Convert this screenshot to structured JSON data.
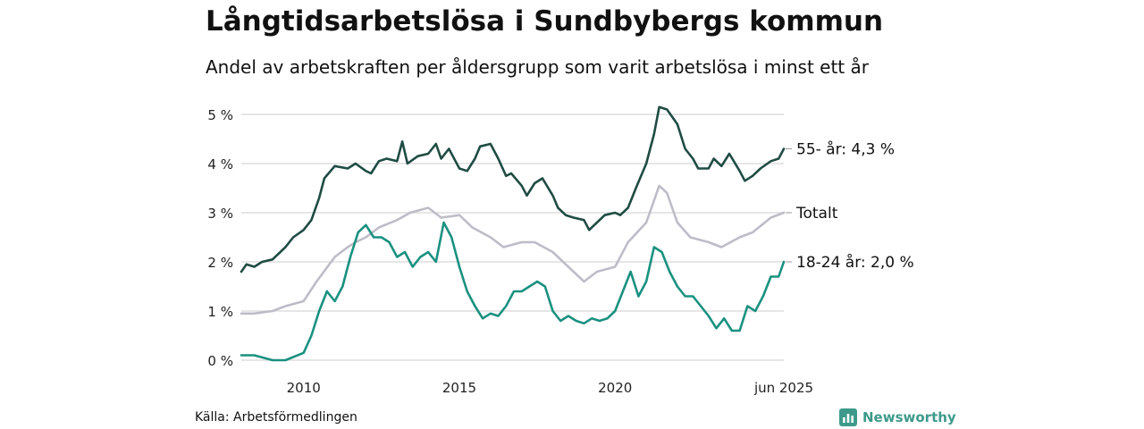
{
  "header": {
    "title": "Långtidsarbetslösa i Sundbybergs kommun",
    "subtitle": "Andel av arbetskraften per åldersgrupp som varit arbetslösa i minst ett år"
  },
  "footer": {
    "source": "Källa: Arbetsförmedlingen",
    "brand": "Newsworthy"
  },
  "colors": {
    "series_55": "#1f4c43",
    "series_total": "#bfbcc8",
    "series_18_24": "#1a9180",
    "grid": "#dddddd",
    "brand": "#3d9a8b"
  },
  "chart_data": {
    "type": "line",
    "title": "Långtidsarbetslösa i Sundbybergs kommun",
    "subtitle": "Andel av arbetskraften per åldersgrupp som varit arbetslösa i minst ett år",
    "xlabel": "",
    "ylabel": "",
    "ylim": [
      0,
      5
    ],
    "y_unit": "%",
    "y_ticks": [
      {
        "value": 0,
        "label": "0 %"
      },
      {
        "value": 1,
        "label": "1 %"
      },
      {
        "value": 2,
        "label": "2 %"
      },
      {
        "value": 3,
        "label": "3 %"
      },
      {
        "value": 4,
        "label": "4 %"
      },
      {
        "value": 5,
        "label": "5 %"
      }
    ],
    "xlim": [
      "2008-01",
      "2025-06"
    ],
    "x_ticks": [
      {
        "value": "2010-01",
        "label": "2010"
      },
      {
        "value": "2015-01",
        "label": "2015"
      },
      {
        "value": "2020-01",
        "label": "2020"
      },
      {
        "value": "2025-06",
        "label": "jun 2025"
      }
    ],
    "grid": true,
    "legend": "end-of-line labels, right",
    "series": [
      {
        "name": "55- år",
        "end_label": "55- år: 4,3 %",
        "color": "#1f4c43",
        "points": [
          [
            "2008-01",
            1.8
          ],
          [
            "2008-03",
            1.95
          ],
          [
            "2008-06",
            1.9
          ],
          [
            "2008-09",
            2.0
          ],
          [
            "2009-01",
            2.05
          ],
          [
            "2009-06",
            2.3
          ],
          [
            "2009-09",
            2.5
          ],
          [
            "2010-01",
            2.65
          ],
          [
            "2010-04",
            2.85
          ],
          [
            "2010-07",
            3.3
          ],
          [
            "2010-09",
            3.7
          ],
          [
            "2011-01",
            3.95
          ],
          [
            "2011-06",
            3.9
          ],
          [
            "2011-09",
            4.0
          ],
          [
            "2012-01",
            3.85
          ],
          [
            "2012-03",
            3.8
          ],
          [
            "2012-06",
            4.05
          ],
          [
            "2012-09",
            4.1
          ],
          [
            "2013-01",
            4.05
          ],
          [
            "2013-03",
            4.45
          ],
          [
            "2013-05",
            4.0
          ],
          [
            "2013-09",
            4.15
          ],
          [
            "2014-01",
            4.2
          ],
          [
            "2014-04",
            4.4
          ],
          [
            "2014-06",
            4.1
          ],
          [
            "2014-09",
            4.3
          ],
          [
            "2015-01",
            3.9
          ],
          [
            "2015-04",
            3.85
          ],
          [
            "2015-07",
            4.1
          ],
          [
            "2015-09",
            4.35
          ],
          [
            "2016-01",
            4.4
          ],
          [
            "2016-04",
            4.1
          ],
          [
            "2016-07",
            3.75
          ],
          [
            "2016-09",
            3.8
          ],
          [
            "2017-01",
            3.55
          ],
          [
            "2017-03",
            3.35
          ],
          [
            "2017-06",
            3.6
          ],
          [
            "2017-09",
            3.7
          ],
          [
            "2018-01",
            3.35
          ],
          [
            "2018-03",
            3.1
          ],
          [
            "2018-06",
            2.95
          ],
          [
            "2018-09",
            2.9
          ],
          [
            "2019-01",
            2.85
          ],
          [
            "2019-03",
            2.65
          ],
          [
            "2019-06",
            2.8
          ],
          [
            "2019-09",
            2.95
          ],
          [
            "2020-01",
            3.0
          ],
          [
            "2020-03",
            2.95
          ],
          [
            "2020-06",
            3.1
          ],
          [
            "2020-09",
            3.5
          ],
          [
            "2021-01",
            4.0
          ],
          [
            "2021-04",
            4.6
          ],
          [
            "2021-06",
            5.15
          ],
          [
            "2021-09",
            5.1
          ],
          [
            "2022-01",
            4.8
          ],
          [
            "2022-04",
            4.3
          ],
          [
            "2022-07",
            4.1
          ],
          [
            "2022-09",
            3.9
          ],
          [
            "2023-01",
            3.9
          ],
          [
            "2023-03",
            4.1
          ],
          [
            "2023-06",
            3.95
          ],
          [
            "2023-09",
            4.2
          ],
          [
            "2024-01",
            3.85
          ],
          [
            "2024-03",
            3.65
          ],
          [
            "2024-06",
            3.75
          ],
          [
            "2024-09",
            3.9
          ],
          [
            "2025-01",
            4.05
          ],
          [
            "2025-04",
            4.1
          ],
          [
            "2025-06",
            4.3
          ]
        ]
      },
      {
        "name": "Totalt",
        "end_label": "Totalt",
        "color": "#bfbcc8",
        "points": [
          [
            "2008-01",
            0.95
          ],
          [
            "2008-06",
            0.95
          ],
          [
            "2009-01",
            1.0
          ],
          [
            "2009-06",
            1.1
          ],
          [
            "2010-01",
            1.2
          ],
          [
            "2010-06",
            1.6
          ],
          [
            "2011-01",
            2.1
          ],
          [
            "2011-06",
            2.3
          ],
          [
            "2011-09",
            2.4
          ],
          [
            "2012-01",
            2.5
          ],
          [
            "2012-06",
            2.7
          ],
          [
            "2013-01",
            2.85
          ],
          [
            "2013-06",
            3.0
          ],
          [
            "2014-01",
            3.1
          ],
          [
            "2014-06",
            2.9
          ],
          [
            "2015-01",
            2.95
          ],
          [
            "2015-06",
            2.7
          ],
          [
            "2016-01",
            2.5
          ],
          [
            "2016-06",
            2.3
          ],
          [
            "2017-01",
            2.4
          ],
          [
            "2017-06",
            2.4
          ],
          [
            "2018-01",
            2.2
          ],
          [
            "2018-06",
            1.95
          ],
          [
            "2019-01",
            1.6
          ],
          [
            "2019-06",
            1.8
          ],
          [
            "2020-01",
            1.9
          ],
          [
            "2020-06",
            2.4
          ],
          [
            "2021-01",
            2.8
          ],
          [
            "2021-06",
            3.55
          ],
          [
            "2021-09",
            3.4
          ],
          [
            "2022-01",
            2.8
          ],
          [
            "2022-06",
            2.5
          ],
          [
            "2023-01",
            2.4
          ],
          [
            "2023-06",
            2.3
          ],
          [
            "2024-01",
            2.5
          ],
          [
            "2024-06",
            2.6
          ],
          [
            "2025-01",
            2.9
          ],
          [
            "2025-06",
            3.0
          ]
        ]
      },
      {
        "name": "18-24 år",
        "end_label": "18-24 år: 2,0 %",
        "color": "#1a9180",
        "points": [
          [
            "2008-01",
            0.1
          ],
          [
            "2008-06",
            0.1
          ],
          [
            "2009-01",
            0.0
          ],
          [
            "2009-06",
            0.0
          ],
          [
            "2010-01",
            0.15
          ],
          [
            "2010-04",
            0.5
          ],
          [
            "2010-07",
            1.0
          ],
          [
            "2010-10",
            1.4
          ],
          [
            "2011-01",
            1.2
          ],
          [
            "2011-04",
            1.5
          ],
          [
            "2011-07",
            2.1
          ],
          [
            "2011-10",
            2.6
          ],
          [
            "2012-01",
            2.75
          ],
          [
            "2012-04",
            2.5
          ],
          [
            "2012-07",
            2.5
          ],
          [
            "2012-10",
            2.4
          ],
          [
            "2013-01",
            2.1
          ],
          [
            "2013-04",
            2.2
          ],
          [
            "2013-07",
            1.9
          ],
          [
            "2013-10",
            2.1
          ],
          [
            "2014-01",
            2.2
          ],
          [
            "2014-04",
            2.0
          ],
          [
            "2014-07",
            2.8
          ],
          [
            "2014-10",
            2.5
          ],
          [
            "2015-01",
            1.9
          ],
          [
            "2015-04",
            1.4
          ],
          [
            "2015-07",
            1.1
          ],
          [
            "2015-10",
            0.85
          ],
          [
            "2016-01",
            0.95
          ],
          [
            "2016-04",
            0.9
          ],
          [
            "2016-07",
            1.1
          ],
          [
            "2016-10",
            1.4
          ],
          [
            "2017-01",
            1.4
          ],
          [
            "2017-04",
            1.5
          ],
          [
            "2017-07",
            1.6
          ],
          [
            "2017-10",
            1.5
          ],
          [
            "2018-01",
            1.0
          ],
          [
            "2018-04",
            0.8
          ],
          [
            "2018-07",
            0.9
          ],
          [
            "2018-10",
            0.8
          ],
          [
            "2019-01",
            0.75
          ],
          [
            "2019-04",
            0.85
          ],
          [
            "2019-07",
            0.8
          ],
          [
            "2019-10",
            0.85
          ],
          [
            "2020-01",
            1.0
          ],
          [
            "2020-04",
            1.4
          ],
          [
            "2020-07",
            1.8
          ],
          [
            "2020-10",
            1.3
          ],
          [
            "2021-01",
            1.6
          ],
          [
            "2021-04",
            2.3
          ],
          [
            "2021-07",
            2.2
          ],
          [
            "2021-10",
            1.8
          ],
          [
            "2022-01",
            1.5
          ],
          [
            "2022-04",
            1.3
          ],
          [
            "2022-07",
            1.3
          ],
          [
            "2022-10",
            1.1
          ],
          [
            "2023-01",
            0.9
          ],
          [
            "2023-04",
            0.65
          ],
          [
            "2023-07",
            0.85
          ],
          [
            "2023-10",
            0.6
          ],
          [
            "2024-01",
            0.6
          ],
          [
            "2024-04",
            1.1
          ],
          [
            "2024-07",
            1.0
          ],
          [
            "2024-10",
            1.3
          ],
          [
            "2025-01",
            1.7
          ],
          [
            "2025-04",
            1.7
          ],
          [
            "2025-06",
            2.0
          ]
        ]
      }
    ]
  }
}
